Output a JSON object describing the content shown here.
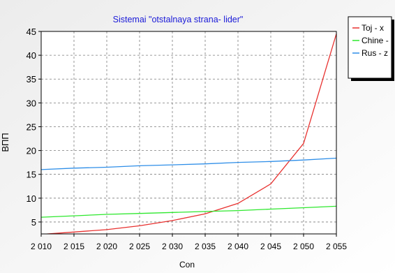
{
  "chart_data": {
    "type": "line",
    "title": "Sistemai \"otstalnaya strana- lider\"",
    "xlabel": "Con",
    "ylabel": "ВПП",
    "xlim": [
      2010,
      2055
    ],
    "ylim": [
      2.5,
      45
    ],
    "x_ticks": [
      "2 010",
      "2 015",
      "2 020",
      "2 025",
      "2 030",
      "2 035",
      "2 040",
      "2 045",
      "2 050",
      "2 055"
    ],
    "x_tick_values": [
      2010,
      2015,
      2020,
      2025,
      2030,
      2035,
      2040,
      2045,
      2050,
      2055
    ],
    "y_ticks": [
      "5",
      "10",
      "15",
      "20",
      "25",
      "30",
      "35",
      "40",
      "45"
    ],
    "y_tick_values": [
      5,
      10,
      15,
      20,
      25,
      30,
      35,
      40,
      45
    ],
    "grid": true,
    "legend_position": "top-right outside",
    "series": [
      {
        "name": "Toj -  x",
        "color": "#e8312f",
        "x": [
          2010,
          2015,
          2020,
          2025,
          2030,
          2035,
          2040,
          2045,
          2050,
          2055
        ],
        "y": [
          2.4,
          2.9,
          3.4,
          4.2,
          5.3,
          6.7,
          8.9,
          13.0,
          21.5,
          44.5
        ]
      },
      {
        "name": "Chine -",
        "color": "#2ee82e",
        "x": [
          2010,
          2015,
          2020,
          2025,
          2030,
          2035,
          2040,
          2045,
          2050,
          2055
        ],
        "y": [
          6.0,
          6.3,
          6.6,
          6.8,
          7.0,
          7.2,
          7.4,
          7.7,
          8.0,
          8.3
        ]
      },
      {
        "name": "Rus -  z",
        "color": "#2e8ee8",
        "x": [
          2010,
          2015,
          2020,
          2025,
          2030,
          2035,
          2040,
          2045,
          2050,
          2055
        ],
        "y": [
          16.0,
          16.3,
          16.5,
          16.8,
          17.0,
          17.2,
          17.5,
          17.7,
          18.0,
          18.4
        ]
      }
    ]
  }
}
